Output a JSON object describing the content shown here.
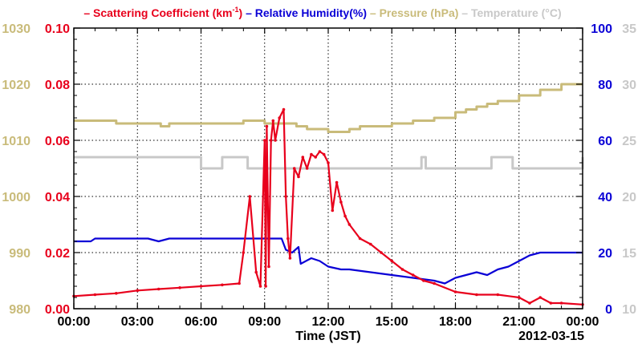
{
  "chart_data": {
    "type": "line",
    "xlabel": "Time (JST)",
    "date_label": "2012-03-15",
    "x_ticks": [
      "00:00",
      "03:00",
      "06:00",
      "09:00",
      "12:00",
      "15:00",
      "18:00",
      "21:00",
      "00:00"
    ],
    "x_range_hours": [
      0,
      24
    ],
    "grid": true,
    "legend": [
      {
        "key": "sc",
        "text": "– Scattering Coefficient (km",
        "sup": "-1",
        "tail": ")",
        "color": "#e8001c"
      },
      {
        "key": "rh",
        "text": "– Relative Humidity(%)",
        "color": "#0a00d6"
      },
      {
        "key": "pr",
        "text": "– Pressure (hPa)",
        "color": "#c9bb7a"
      },
      {
        "key": "tp",
        "text": "– Temperature (°C)",
        "color": "#c8c8c8"
      }
    ],
    "axes": {
      "pressure": {
        "ticks": [
          "980",
          "990",
          "1000",
          "1010",
          "1020",
          "1030"
        ],
        "range": [
          980,
          1030
        ],
        "color": "#c9bb7a"
      },
      "scattering": {
        "ticks": [
          "0.00",
          "0.02",
          "0.04",
          "0.06",
          "0.08",
          "0.10"
        ],
        "range": [
          0,
          0.1
        ],
        "color": "#e8001c"
      },
      "humidity": {
        "ticks": [
          "0",
          "20",
          "40",
          "60",
          "80",
          "100"
        ],
        "range": [
          0,
          100
        ],
        "color": "#0a00d6"
      },
      "temperature": {
        "ticks": [
          "10",
          "15",
          "20",
          "25",
          "30",
          "35"
        ],
        "range": [
          10,
          35
        ],
        "color": "#c8c8c8"
      }
    },
    "series": [
      {
        "name": "Scattering Coefficient (km-1)",
        "axis": "scattering",
        "color": "#e8001c",
        "x": [
          0,
          1,
          2,
          3,
          4,
          5,
          6,
          7,
          7.8,
          8.0,
          8.3,
          8.6,
          8.8,
          9.0,
          9.05,
          9.1,
          9.2,
          9.3,
          9.4,
          9.5,
          9.7,
          9.9,
          10.0,
          10.1,
          10.2,
          10.4,
          10.6,
          10.8,
          11.0,
          11.2,
          11.4,
          11.6,
          11.8,
          12.0,
          12.2,
          12.4,
          12.6,
          12.8,
          13.0,
          13.5,
          14.0,
          14.5,
          15.0,
          15.5,
          16.0,
          16.5,
          17,
          18,
          19,
          20,
          21,
          21.5,
          22,
          22.5,
          23,
          24
        ],
        "y": [
          0.0045,
          0.005,
          0.0055,
          0.0065,
          0.007,
          0.0075,
          0.008,
          0.0085,
          0.009,
          0.02,
          0.04,
          0.013,
          0.008,
          0.06,
          0.008,
          0.065,
          0.015,
          0.06,
          0.067,
          0.06,
          0.068,
          0.071,
          0.04,
          0.025,
          0.018,
          0.05,
          0.047,
          0.054,
          0.05,
          0.055,
          0.054,
          0.056,
          0.055,
          0.052,
          0.035,
          0.045,
          0.038,
          0.033,
          0.03,
          0.025,
          0.023,
          0.02,
          0.017,
          0.014,
          0.012,
          0.01,
          0.009,
          0.006,
          0.005,
          0.005,
          0.004,
          0.002,
          0.004,
          0.002,
          0.002,
          0.0015
        ]
      },
      {
        "name": "Relative Humidity(%)",
        "axis": "humidity",
        "color": "#0a00d6",
        "x": [
          0,
          0.8,
          1.0,
          3.5,
          4.0,
          4.5,
          6,
          9.8,
          10.0,
          10.3,
          10.6,
          10.7,
          11.2,
          11.6,
          12.0,
          12.6,
          13.0,
          14.0,
          15.0,
          16.0,
          17.0,
          17.5,
          18.0,
          18.5,
          19.0,
          19.5,
          20.0,
          20.5,
          21.0,
          21.5,
          22.0,
          23,
          24
        ],
        "y": [
          24,
          24,
          25,
          25,
          24,
          25,
          25,
          25,
          21,
          20,
          22,
          16,
          18,
          17,
          15,
          14,
          14,
          13,
          12,
          11,
          10,
          9,
          11,
          12,
          13,
          12,
          14,
          15,
          17,
          19,
          20,
          20,
          20
        ]
      },
      {
        "name": "Pressure (hPa)",
        "axis": "pressure",
        "color": "#c9bb7a",
        "x": [
          0,
          2,
          3.5,
          4.1,
          4.5,
          5,
          6,
          8,
          9,
          10,
          10.5,
          11,
          11.5,
          12,
          13.0,
          13.5,
          14,
          15,
          16,
          17,
          18,
          18.5,
          19,
          19.5,
          20,
          21,
          22,
          23,
          24
        ],
        "y": [
          1013.5,
          1013,
          1013,
          1012.5,
          1013,
          1013,
          1013,
          1013.5,
          1013,
          1013,
          1012.5,
          1012,
          1012,
          1011.5,
          1012,
          1012.5,
          1012.5,
          1013,
          1013.5,
          1014,
          1015,
          1015.5,
          1016,
          1016.5,
          1017,
          1018,
          1019,
          1020,
          1020
        ]
      },
      {
        "name": "Temperature (°C)",
        "axis": "temperature",
        "color": "#c8c8c8",
        "x": [
          0,
          5.9,
          6.0,
          6.8,
          7.0,
          8.0,
          8.2,
          9.5,
          10.0,
          16.2,
          16.4,
          16.6,
          17.0,
          19.5,
          19.7,
          20.5,
          20.7,
          24
        ],
        "y": [
          23.5,
          23.5,
          22.5,
          22.5,
          23.5,
          23.5,
          22.5,
          22.5,
          22.5,
          22.5,
          23.5,
          22.5,
          22.5,
          22.5,
          23.5,
          23.5,
          22.5,
          23.5
        ]
      }
    ]
  }
}
